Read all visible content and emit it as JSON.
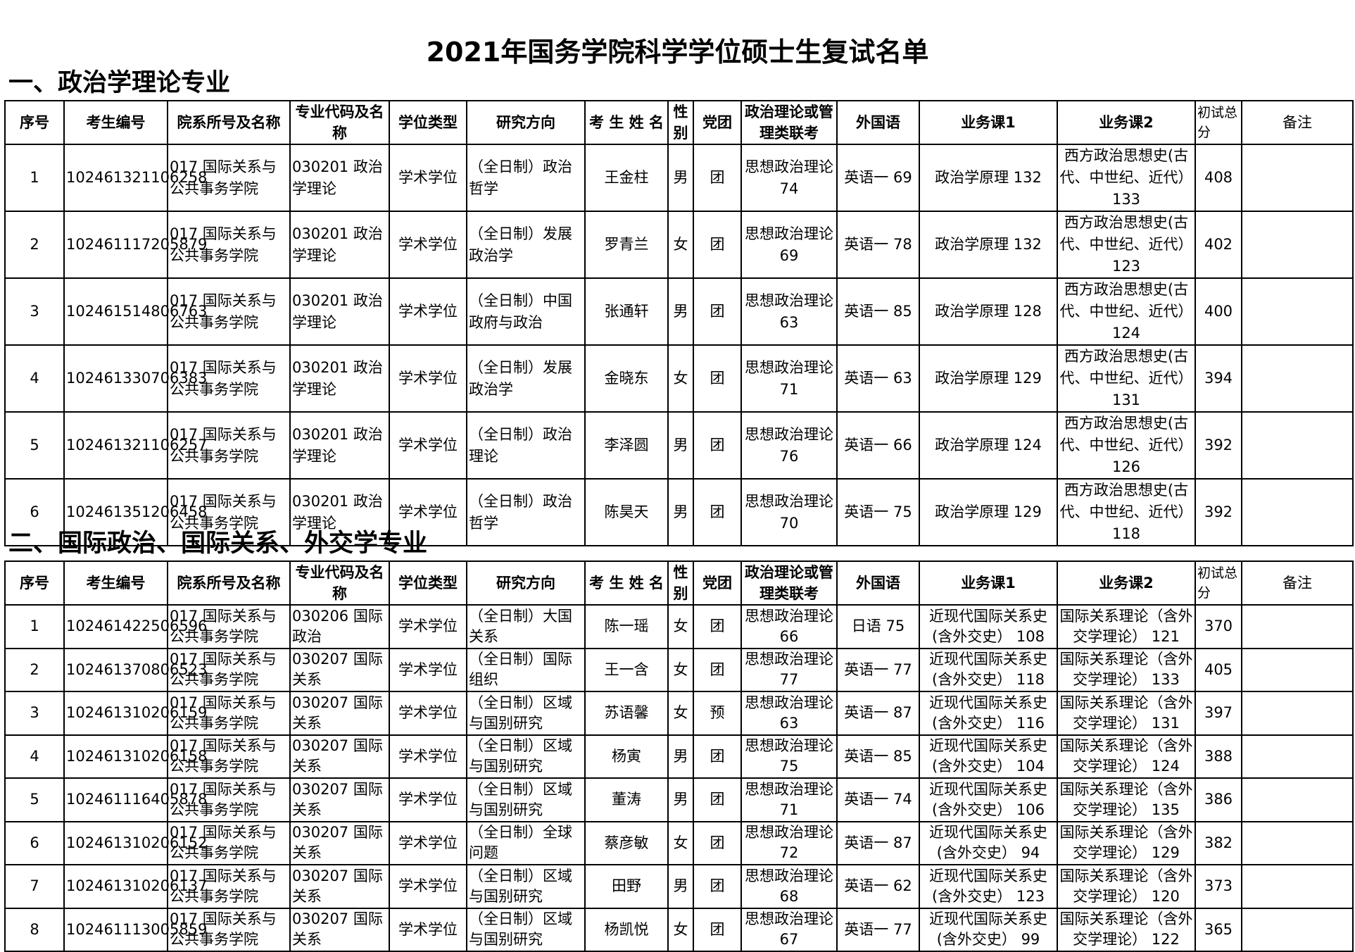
{
  "title": "2021年国务学院科学学位硕士生复试名单",
  "sections": [
    {
      "heading": "一、政治学理论专业",
      "columns": [
        "序号",
        "考生编号",
        "院系所号及名称",
        "专业代码及名称",
        "学位类型",
        "研究方向",
        "考 生 姓 名",
        "性别",
        "党团",
        "政治理论或管理类联考",
        "外国语",
        "业务课1",
        "业务课2",
        "初试总分",
        "备注"
      ],
      "rows": [
        [
          "1",
          "102461321106258",
          "017 国际关系与公共事务学院",
          "030201 政治学理论",
          "学术学位",
          "（全日制）政治哲学",
          "王金柱",
          "男",
          "团",
          "思想政治理论 74",
          "英语一 69",
          "政治学原理 132",
          "西方政治思想史(古代、中世纪、近代） 133",
          "408",
          ""
        ],
        [
          "2",
          "102461117205879",
          "017 国际关系与公共事务学院",
          "030201 政治学理论",
          "学术学位",
          "（全日制）发展政治学",
          "罗青兰",
          "女",
          "团",
          "思想政治理论 69",
          "英语一 78",
          "政治学原理 132",
          "西方政治思想史(古代、中世纪、近代） 123",
          "402",
          ""
        ],
        [
          "3",
          "102461514806763",
          "017 国际关系与公共事务学院",
          "030201 政治学理论",
          "学术学位",
          "（全日制）中国政府与政治",
          "张通轩",
          "男",
          "团",
          "思想政治理论 63",
          "英语一 85",
          "政治学原理 128",
          "西方政治思想史(古代、中世纪、近代） 124",
          "400",
          ""
        ],
        [
          "4",
          "102461330706383",
          "017 国际关系与公共事务学院",
          "030201 政治学理论",
          "学术学位",
          "（全日制）发展政治学",
          "金晓东",
          "女",
          "团",
          "思想政治理论 71",
          "英语一 63",
          "政治学原理 129",
          "西方政治思想史(古代、中世纪、近代） 131",
          "394",
          ""
        ],
        [
          "5",
          "102461321106257",
          "017 国际关系与公共事务学院",
          "030201 政治学理论",
          "学术学位",
          "（全日制）政治理论",
          "李泽圆",
          "男",
          "团",
          "思想政治理论 76",
          "英语一 66",
          "政治学原理 124",
          "西方政治思想史(古代、中世纪、近代） 126",
          "392",
          ""
        ],
        [
          "6",
          "102461351206458",
          "017 国际关系与公共事务学院",
          "030201 政治学理论",
          "学术学位",
          "（全日制）政治哲学",
          "陈昊天",
          "男",
          "团",
          "思想政治理论 70",
          "英语一 75",
          "政治学原理 129",
          "西方政治思想史(古代、中世纪、近代） 118",
          "392",
          ""
        ]
      ]
    },
    {
      "heading": "二、国际政治、国际关系、外交学专业",
      "columns": [
        "序号",
        "考生编号",
        "院系所号及名称",
        "专业代码及名称",
        "学位类型",
        "研究方向",
        "考 生 姓 名",
        "性别",
        "党团",
        "政治理论或管理类联考",
        "外国语",
        "业务课1",
        "业务课2",
        "初试总分",
        "备注"
      ],
      "rows": [
        [
          "1",
          "102461422506596",
          "017 国际关系与公共事务学院",
          "030206 国际政治",
          "学术学位",
          "（全日制）大国关系",
          "陈一瑶",
          "女",
          "团",
          "思想政治理论 66",
          "日语 75",
          "近现代国际关系史(含外交史） 108",
          "国际关系理论（含外交学理论） 121",
          "370",
          ""
        ],
        [
          "2",
          "102461370806523",
          "017 国际关系与公共事务学院",
          "030207 国际关系",
          "学术学位",
          "（全日制）国际组织",
          "王一含",
          "女",
          "团",
          "思想政治理论 77",
          "英语一 77",
          "近现代国际关系史(含外交史） 118",
          "国际关系理论（含外交学理论） 133",
          "405",
          ""
        ],
        [
          "3",
          "102461310206159",
          "017 国际关系与公共事务学院",
          "030207 国际关系",
          "学术学位",
          "（全日制）区域与国别研究",
          "苏语馨",
          "女",
          "预",
          "思想政治理论 63",
          "英语一 87",
          "近现代国际关系史(含外交史） 116",
          "国际关系理论（含外交学理论） 131",
          "397",
          ""
        ],
        [
          "4",
          "102461310206158",
          "017 国际关系与公共事务学院",
          "030207 国际关系",
          "学术学位",
          "（全日制）区域与国别研究",
          "杨寅",
          "男",
          "团",
          "思想政治理论 75",
          "英语一 85",
          "近现代国际关系史(含外交史） 104",
          "国际关系理论（含外交学理论） 124",
          "388",
          ""
        ],
        [
          "5",
          "102461116405878",
          "017 国际关系与公共事务学院",
          "030207 国际关系",
          "学术学位",
          "（全日制）区域与国别研究",
          "董涛",
          "男",
          "团",
          "思想政治理论 71",
          "英语一 74",
          "近现代国际关系史(含外交史） 106",
          "国际关系理论（含外交学理论） 135",
          "386",
          ""
        ],
        [
          "6",
          "102461310206152",
          "017 国际关系与公共事务学院",
          "030207 国际关系",
          "学术学位",
          "（全日制）全球问题",
          "蔡彦敏",
          "女",
          "团",
          "思想政治理论 72",
          "英语一 87",
          "近现代国际关系史(含外交史） 94",
          "国际关系理论（含外交学理论） 129",
          "382",
          ""
        ],
        [
          "7",
          "102461310206137",
          "017 国际关系与公共事务学院",
          "030207 国际关系",
          "学术学位",
          "（全日制）区域与国别研究",
          "田野",
          "男",
          "团",
          "思想政治理论 68",
          "英语一 62",
          "近现代国际关系史(含外交史） 123",
          "国际关系理论（含外交学理论） 120",
          "373",
          ""
        ],
        [
          "8",
          "102461113005859",
          "017 国际关系与公共事务学院",
          "030207 国际关系",
          "学术学位",
          "（全日制）区域与国别研究",
          "杨凯悦",
          "女",
          "团",
          "思想政治理论 67",
          "英语一 77",
          "近现代国际关系史(含外交史） 99",
          "国际关系理论（含外交学理论） 122",
          "365",
          ""
        ]
      ]
    }
  ]
}
